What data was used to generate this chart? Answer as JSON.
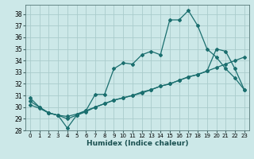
{
  "xlabel": "Humidex (Indice chaleur)",
  "bg_color": "#cce8e8",
  "grid_color": "#aacccc",
  "line_color": "#1a6e6e",
  "xlim": [
    -0.5,
    23.5
  ],
  "ylim": [
    28,
    38.8
  ],
  "yticks": [
    28,
    29,
    30,
    31,
    32,
    33,
    34,
    35,
    36,
    37,
    38
  ],
  "xticks": [
    0,
    1,
    2,
    3,
    4,
    5,
    6,
    7,
    8,
    9,
    10,
    11,
    12,
    13,
    14,
    15,
    16,
    17,
    18,
    19,
    20,
    21,
    22,
    23
  ],
  "line1_x": [
    0,
    1,
    2,
    3,
    4,
    5,
    6,
    7,
    8,
    9,
    10,
    11,
    12,
    13,
    14,
    15,
    16,
    17,
    18,
    19,
    20,
    21,
    22,
    23
  ],
  "line1_y": [
    30.8,
    30.0,
    29.5,
    29.3,
    28.2,
    29.3,
    29.7,
    31.1,
    31.1,
    33.3,
    33.8,
    33.7,
    34.5,
    34.8,
    34.5,
    37.5,
    37.5,
    38.3,
    37.0,
    35.0,
    34.3,
    33.3,
    32.5,
    31.5
  ],
  "line2_x": [
    0,
    1,
    2,
    3,
    4,
    5,
    6,
    7,
    8,
    9,
    10,
    11,
    12,
    13,
    14,
    15,
    16,
    17,
    18,
    19,
    20,
    21,
    22,
    23
  ],
  "line2_y": [
    30.2,
    29.9,
    29.5,
    29.3,
    29.2,
    29.4,
    29.7,
    30.0,
    30.3,
    30.6,
    30.8,
    31.0,
    31.3,
    31.5,
    31.8,
    32.0,
    32.3,
    32.6,
    32.8,
    33.1,
    33.4,
    33.7,
    34.0,
    34.3
  ],
  "line3_x": [
    0,
    1,
    2,
    3,
    4,
    5,
    6,
    7,
    8,
    9,
    10,
    11,
    12,
    13,
    14,
    15,
    16,
    17,
    18,
    19,
    20,
    21,
    22,
    23
  ],
  "line3_y": [
    30.5,
    30.0,
    29.5,
    29.3,
    29.0,
    29.3,
    29.6,
    30.0,
    30.3,
    30.6,
    30.8,
    31.0,
    31.2,
    31.5,
    31.8,
    32.0,
    32.3,
    32.6,
    32.8,
    33.1,
    35.0,
    34.8,
    33.3,
    31.5
  ],
  "marker": "D",
  "markersize": 2.0,
  "linewidth": 0.9
}
